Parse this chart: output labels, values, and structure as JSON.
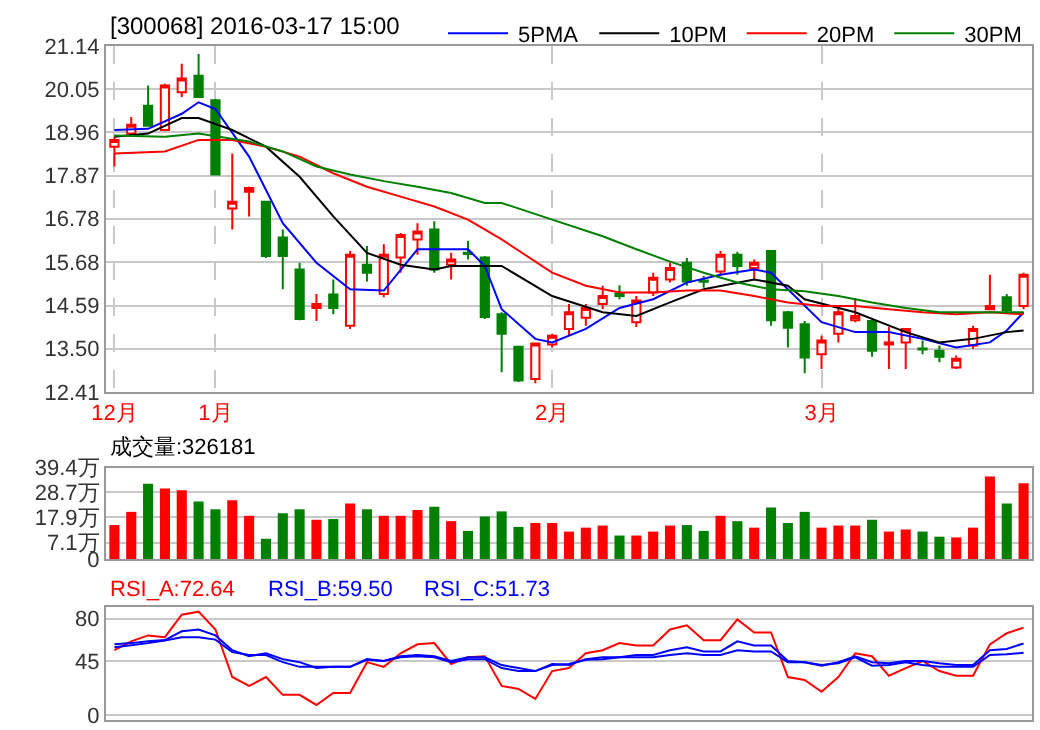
{
  "chart_data": [
    {
      "type": "candlestick",
      "title": "[300068] 2016-03-17 15:00",
      "categories": [
        "12月",
        null,
        null,
        null,
        null,
        null,
        "1月",
        null,
        null,
        null,
        null,
        null,
        null,
        null,
        null,
        null,
        null,
        null,
        null,
        null,
        null,
        null,
        null,
        null,
        null,
        null,
        "2月",
        null,
        null,
        null,
        null,
        null,
        null,
        null,
        null,
        null,
        null,
        null,
        null,
        null,
        null,
        null,
        "3月",
        null,
        null,
        null,
        null,
        null,
        null,
        null,
        null,
        null,
        null,
        null,
        null
      ],
      "ohlc": [
        [
          18.6,
          18.85,
          18.1,
          18.77
        ],
        [
          18.93,
          19.35,
          18.85,
          19.15
        ],
        [
          19.63,
          20.14,
          19.13,
          19.13
        ],
        [
          19.02,
          20.19,
          19.02,
          20.14
        ],
        [
          19.97,
          20.69,
          19.85,
          20.32
        ],
        [
          20.39,
          20.94,
          19.85,
          19.85
        ],
        [
          19.77,
          19.8,
          17.9,
          17.9
        ],
        [
          17.04,
          18.43,
          16.51,
          17.21
        ],
        [
          17.46,
          17.59,
          16.84,
          17.56
        ],
        [
          17.21,
          17.21,
          15.79,
          15.84
        ],
        [
          16.31,
          16.51,
          15.0,
          15.84
        ],
        [
          15.5,
          15.67,
          14.22,
          14.25
        ],
        [
          14.53,
          14.88,
          14.2,
          14.63
        ],
        [
          14.87,
          15.25,
          14.37,
          14.53
        ],
        [
          14.08,
          15.97,
          14.0,
          15.87
        ],
        [
          15.62,
          16.09,
          15.2,
          15.42
        ],
        [
          14.88,
          16.14,
          14.8,
          15.87
        ],
        [
          15.8,
          16.42,
          15.42,
          16.37
        ],
        [
          16.26,
          16.67,
          15.87,
          16.46
        ],
        [
          16.51,
          16.72,
          15.42,
          15.5
        ],
        [
          15.62,
          15.92,
          15.25,
          15.75
        ],
        [
          15.92,
          16.22,
          15.75,
          15.89
        ],
        [
          15.8,
          15.84,
          14.25,
          14.3
        ],
        [
          14.37,
          14.42,
          12.91,
          13.88
        ],
        [
          13.55,
          13.55,
          12.66,
          12.7
        ],
        [
          12.74,
          13.66,
          12.63,
          13.63
        ],
        [
          13.61,
          13.88,
          13.53,
          13.83
        ],
        [
          14.0,
          14.63,
          13.83,
          14.42
        ],
        [
          14.28,
          14.63,
          14.08,
          14.53
        ],
        [
          14.63,
          15.09,
          14.5,
          14.83
        ],
        [
          14.88,
          15.1,
          14.75,
          14.83
        ],
        [
          14.17,
          14.83,
          14.05,
          14.72
        ],
        [
          14.92,
          15.42,
          14.83,
          15.29
        ],
        [
          15.25,
          15.67,
          15.17,
          15.54
        ],
        [
          15.67,
          15.79,
          15.09,
          15.2
        ],
        [
          15.22,
          15.34,
          15.04,
          15.19
        ],
        [
          15.45,
          15.97,
          15.34,
          15.87
        ],
        [
          15.87,
          15.95,
          15.37,
          15.59
        ],
        [
          15.54,
          15.75,
          15.25,
          15.67
        ],
        [
          15.97,
          15.97,
          14.08,
          14.22
        ],
        [
          14.42,
          14.45,
          13.53,
          14.03
        ],
        [
          14.12,
          14.2,
          12.88,
          13.28
        ],
        [
          13.36,
          13.83,
          12.99,
          13.71
        ],
        [
          13.88,
          14.58,
          13.66,
          14.42
        ],
        [
          14.22,
          14.78,
          14.17,
          14.33
        ],
        [
          14.2,
          14.23,
          13.3,
          13.45
        ],
        [
          13.61,
          14.05,
          12.99,
          13.66
        ],
        [
          13.66,
          14.0,
          12.99,
          14.0
        ],
        [
          13.51,
          13.71,
          13.36,
          13.48
        ],
        [
          13.45,
          13.58,
          13.16,
          13.3
        ],
        [
          13.03,
          13.33,
          12.99,
          13.25
        ],
        [
          13.58,
          14.08,
          13.5,
          14.0
        ],
        [
          14.5,
          15.37,
          14.47,
          14.58
        ],
        [
          14.8,
          14.88,
          14.38,
          14.47
        ],
        [
          14.58,
          15.42,
          14.5,
          15.37
        ]
      ],
      "colors": [
        "#ff0000",
        "#ff0000",
        "#008000",
        "#ff0000",
        "#ff0000",
        "#008000",
        "#008000",
        "#ff0000",
        "#ff0000",
        "#008000",
        "#008000",
        "#008000",
        "#ff0000",
        "#008000",
        "#ff0000",
        "#008000",
        "#ff0000",
        "#ff0000",
        "#ff0000",
        "#008000",
        "#ff0000",
        "#008000",
        "#008000",
        "#008000",
        "#008000",
        "#ff0000",
        "#ff0000",
        "#ff0000",
        "#ff0000",
        "#ff0000",
        "#008000",
        "#ff0000",
        "#ff0000",
        "#ff0000",
        "#008000",
        "#008000",
        "#ff0000",
        "#008000",
        "#ff0000",
        "#008000",
        "#008000",
        "#008000",
        "#ff0000",
        "#ff0000",
        "#ff0000",
        "#008000",
        "#ff0000",
        "#ff0000",
        "#008000",
        "#008000",
        "#ff0000",
        "#ff0000",
        "#ff0000",
        "#008000",
        "#ff0000"
      ],
      "series": [
        {
          "name": "5PMA",
          "type": "line",
          "color": "#0000ff",
          "values": [
            19.02,
            null,
            19.05,
            null,
            19.43,
            19.72,
            19.55,
            null,
            18.35,
            null,
            16.67,
            null,
            15.67,
            null,
            15.0,
            null,
            14.97,
            null,
            16.01,
            null,
            16.01,
            16.01,
            15.59,
            14.5,
            null,
            13.75,
            13.66,
            null,
            14.0,
            null,
            14.53,
            null,
            14.75,
            null,
            15.17,
            null,
            15.37,
            null,
            15.5,
            15.42,
            15.0,
            null,
            14.17,
            null,
            13.92,
            null,
            13.92,
            null,
            13.75,
            null,
            13.53,
            null,
            13.66,
            13.96,
            14.42
          ]
        },
        {
          "name": "10PM",
          "type": "line",
          "color": "#000000",
          "values": [
            18.85,
            null,
            18.93,
            null,
            19.32,
            19.32,
            null,
            19.02,
            null,
            18.6,
            null,
            17.84,
            null,
            16.84,
            null,
            15.92,
            null,
            15.62,
            null,
            15.5,
            15.59,
            null,
            15.59,
            15.59,
            null,
            null,
            14.83,
            null,
            null,
            14.42,
            null,
            14.33,
            null,
            14.67,
            null,
            15.0,
            null,
            null,
            15.25,
            null,
            15.09,
            14.75,
            null,
            null,
            14.42,
            null,
            null,
            13.92,
            null,
            13.66,
            null,
            13.75,
            null,
            13.92,
            13.96
          ]
        },
        {
          "name": "20PM",
          "type": "line",
          "color": "#ff0000",
          "values": [
            18.43,
            null,
            null,
            18.48,
            null,
            18.77,
            null,
            18.77,
            null,
            18.6,
            null,
            18.35,
            null,
            17.93,
            null,
            17.59,
            null,
            17.34,
            null,
            17.09,
            null,
            16.76,
            null,
            16.26,
            null,
            null,
            15.42,
            null,
            15.09,
            null,
            14.92,
            null,
            14.92,
            null,
            14.97,
            null,
            14.97,
            null,
            14.83,
            null,
            14.67,
            null,
            14.58,
            null,
            14.58,
            null,
            14.5,
            null,
            14.42,
            null,
            14.37,
            null,
            14.42,
            null,
            14.37
          ]
        },
        {
          "name": "30PM",
          "type": "line",
          "color": "#008000",
          "values": [
            18.88,
            null,
            null,
            18.85,
            null,
            18.93,
            null,
            null,
            18.73,
            null,
            18.48,
            null,
            18.1,
            null,
            17.9,
            null,
            17.73,
            null,
            17.59,
            null,
            17.43,
            null,
            17.18,
            17.18,
            null,
            null,
            16.76,
            null,
            null,
            16.34,
            null,
            16.01,
            null,
            15.7,
            null,
            15.42,
            null,
            15.17,
            null,
            15.0,
            null,
            14.95,
            null,
            14.83,
            null,
            14.67,
            null,
            14.53,
            null,
            14.42,
            null,
            14.42,
            null,
            null,
            14.42
          ]
        }
      ],
      "ylim": [
        12.41,
        21.14
      ],
      "yticks": [
        12.41,
        {
          "value": 13.5,
          "label": "13.50"
        },
        14.59,
        15.68,
        16.78,
        17.87,
        18.96,
        20.05,
        21.14
      ],
      "grid": true,
      "legend": "top right"
    },
    {
      "type": "bar",
      "annotations": [
        "成交量:326181"
      ],
      "categories": [
        null,
        null,
        null,
        null,
        null,
        null,
        null,
        null,
        null,
        null,
        null,
        null,
        null,
        null,
        null,
        null,
        null,
        null,
        null,
        null,
        null,
        null,
        null,
        null,
        null,
        null,
        null,
        null,
        null,
        null,
        null,
        null,
        null,
        null,
        null,
        null,
        null,
        null,
        null,
        null,
        null,
        null,
        null,
        null,
        null,
        null,
        null,
        null,
        null,
        null,
        null,
        null,
        null,
        null,
        null
      ],
      "values": [
        14.6,
        20.3,
        32.4,
        30.4,
        29.6,
        24.8,
        21.4,
        25.3,
        18.6,
        8.7,
        19.7,
        21.4,
        16.9,
        17.2,
        23.9,
        21.4,
        18.6,
        18.6,
        21.1,
        22.5,
        16.3,
        12.1,
        18.3,
        20.5,
        13.8,
        15.5,
        15.5,
        11.8,
        13.5,
        14.4,
        10.1,
        10.1,
        11.8,
        14.4,
        14.6,
        12.1,
        18.6,
        16.3,
        13.5,
        22.2,
        15.5,
        20.3,
        13.5,
        14.4,
        14.4,
        16.9,
        11.8,
        12.7,
        11.8,
        9.6,
        9.3,
        13.5,
        35.5,
        23.9,
        32.6
      ],
      "colors": [
        "#ff0000",
        "#ff0000",
        "#008000",
        "#ff0000",
        "#ff0000",
        "#008000",
        "#008000",
        "#ff0000",
        "#ff0000",
        "#008000",
        "#008000",
        "#008000",
        "#ff0000",
        "#008000",
        "#ff0000",
        "#008000",
        "#ff0000",
        "#ff0000",
        "#ff0000",
        "#008000",
        "#ff0000",
        "#008000",
        "#008000",
        "#008000",
        "#008000",
        "#ff0000",
        "#ff0000",
        "#ff0000",
        "#ff0000",
        "#ff0000",
        "#008000",
        "#ff0000",
        "#ff0000",
        "#ff0000",
        "#008000",
        "#008000",
        "#ff0000",
        "#008000",
        "#ff0000",
        "#008000",
        "#008000",
        "#008000",
        "#ff0000",
        "#ff0000",
        "#ff0000",
        "#008000",
        "#ff0000",
        "#ff0000",
        "#008000",
        "#008000",
        "#ff0000",
        "#ff0000",
        "#ff0000",
        "#008000",
        "#ff0000"
      ],
      "ylim": [
        0,
        39.4
      ],
      "yticks": [
        0,
        {
          "value": 7.1,
          "label": "7.1万"
        },
        {
          "value": 17.9,
          "label": "17.9万"
        },
        {
          "value": 28.7,
          "label": "28.7万"
        },
        {
          "value": 39.4,
          "label": "39.4万"
        }
      ],
      "grid": "y",
      "tick_labels": "y"
    },
    {
      "type": "line",
      "annotations": [
        "RSI_A:72.64",
        "RSI_B:59.50",
        "RSI_C:51.73"
      ],
      "categories": [
        null,
        null,
        null,
        null,
        null,
        null,
        null,
        null,
        null,
        null,
        null,
        null,
        null,
        null,
        null,
        null,
        null,
        null,
        null,
        null,
        null,
        null,
        null,
        null,
        null,
        null,
        null,
        null,
        null,
        null,
        null,
        null,
        null,
        null,
        null,
        null,
        null,
        null,
        null,
        null,
        null,
        null,
        null,
        null,
        null,
        null,
        null,
        null,
        null,
        null,
        null,
        null,
        null,
        null,
        null
      ],
      "series": [
        {
          "color": "#ff0000",
          "values": [
            53.9,
            61.3,
            66.2,
            64.7,
            83.4,
            85.9,
            71.1,
            31.7,
            24.3,
            31.7,
            16.9,
            16.9,
            8.5,
            18.4,
            18.4,
            44.0,
            40.1,
            51.4,
            58.8,
            59.9,
            42.5,
            48.0,
            48.9,
            24.3,
            21.8,
            13.5,
            36.6,
            39.1,
            51.4,
            53.9,
            59.8,
            57.8,
            57.8,
            71.1,
            74.6,
            62.2,
            62.2,
            79.5,
            68.6,
            68.6,
            31.7,
            29.2,
            19.4,
            31.7,
            51.4,
            48.9,
            32.7,
            39.1,
            45.0,
            36.6,
            32.7,
            32.7,
            58.8,
            68.0,
            72.64
          ]
        },
        {
          "color": "#0000ff",
          "values": [
            58.8,
            59.8,
            61.3,
            62.3,
            69.6,
            71.1,
            66.2,
            53.9,
            48.9,
            51.4,
            46.5,
            44.0,
            39.1,
            40.1,
            40.1,
            46.5,
            45.0,
            48.9,
            49.9,
            48.9,
            45.0,
            48.0,
            48.0,
            41.6,
            39.1,
            36.6,
            42.5,
            41.6,
            46.5,
            48.0,
            48.0,
            49.9,
            49.9,
            53.9,
            56.3,
            52.9,
            52.9,
            61.3,
            57.8,
            57.8,
            45.0,
            44.0,
            41.1,
            44.0,
            48.9,
            44.0,
            43.0,
            45.0,
            45.0,
            43.0,
            41.6,
            41.6,
            53.9,
            55.0,
            59.5
          ]
        },
        {
          "color": "#0000ff",
          "values": [
            56.3,
            58.0,
            59.8,
            62.0,
            64.7,
            64.7,
            62.7,
            52.4,
            49.9,
            49.9,
            44.0,
            40.1,
            40.1,
            40.1,
            40.1,
            46.0,
            45.0,
            48.0,
            48.9,
            48.0,
            44.0,
            46.5,
            46.5,
            39.1,
            36.6,
            36.6,
            41.6,
            42.5,
            46.0,
            46.5,
            48.0,
            48.0,
            48.0,
            49.9,
            51.4,
            49.9,
            49.9,
            53.9,
            52.9,
            52.9,
            44.0,
            44.0,
            41.6,
            43.0,
            48.0,
            41.1,
            41.6,
            44.0,
            41.6,
            40.1,
            40.1,
            40.1,
            49.9,
            50.5,
            51.73
          ]
        }
      ],
      "ylim": [
        -4,
        90
      ],
      "yticks": [
        0,
        45,
        80
      ],
      "grid": "y",
      "tick_labels": "y"
    }
  ]
}
